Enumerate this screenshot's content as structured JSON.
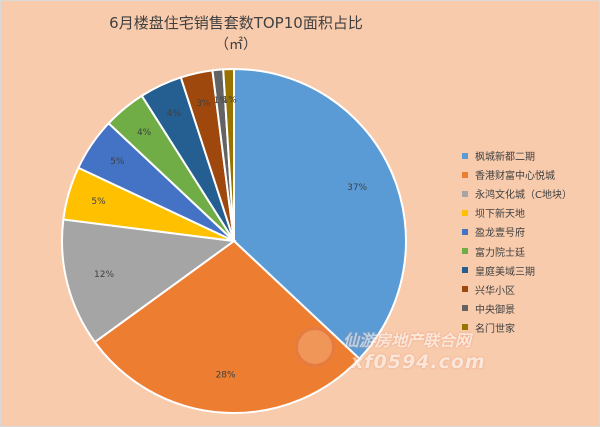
{
  "chart_data": {
    "type": "pie",
    "title": "6月楼盘住宅销售套数TOP10面积占比",
    "subtitle": "（㎡）",
    "series": [
      {
        "name": "枫城新都二期",
        "value": 37,
        "label": "37%",
        "color": "#5b9bd5"
      },
      {
        "name": "香港财富中心悦城",
        "value": 28,
        "label": "28%",
        "color": "#ed7d31"
      },
      {
        "name": "永鸿文化城（C地块）",
        "value": 12,
        "label": "12%",
        "color": "#a5a5a5"
      },
      {
        "name": "坝下新天地",
        "value": 5,
        "label": "5%",
        "color": "#ffc000"
      },
      {
        "name": "盈龙壹号府",
        "value": 5,
        "label": "5%",
        "color": "#4472c4"
      },
      {
        "name": "富力院士廷",
        "value": 4,
        "label": "4%",
        "color": "#70ad47"
      },
      {
        "name": "皇庭美域三期",
        "value": 4,
        "label": "4%",
        "color": "#255e91"
      },
      {
        "name": "兴华小区",
        "value": 3,
        "label": "3%",
        "color": "#9e480e"
      },
      {
        "name": "中央御景",
        "value": 1,
        "label": "1%",
        "color": "#636363"
      },
      {
        "name": "名门世家",
        "value": 1,
        "label": "1%",
        "color": "#997300"
      }
    ],
    "legend_position": "right"
  },
  "watermark": {
    "line1": "仙游房地产联合网",
    "line2": "xf0594.com"
  }
}
